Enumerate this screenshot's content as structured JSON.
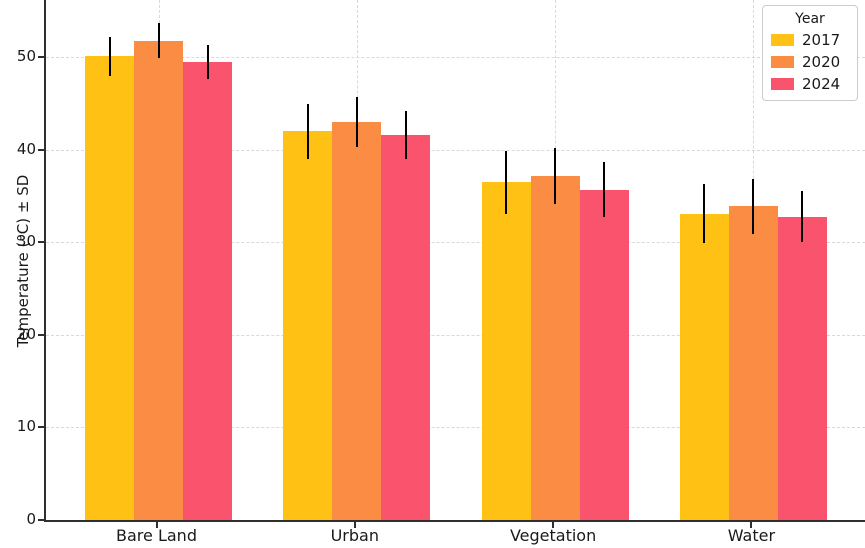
{
  "chart_data": {
    "type": "bar",
    "title": "",
    "categories": [
      "Bare Land",
      "Urban",
      "Vegetation",
      "Water"
    ],
    "series": [
      {
        "name": "2017",
        "color": "#FFC113",
        "values": [
          50.1,
          42.0,
          36.5,
          33.1
        ],
        "errors": [
          2.1,
          3.0,
          3.4,
          3.2
        ]
      },
      {
        "name": "2020",
        "color": "#FB8C44",
        "values": [
          51.8,
          43.0,
          37.2,
          33.9
        ],
        "errors": [
          1.9,
          2.7,
          3.0,
          3.0
        ]
      },
      {
        "name": "2024",
        "color": "#F9536E",
        "values": [
          49.5,
          41.6,
          35.7,
          32.8
        ],
        "errors": [
          1.8,
          2.6,
          3.0,
          2.8
        ]
      }
    ],
    "xlabel": "",
    "ylabel": "Temperature (°C) ± SD",
    "ylim": [
      0,
      56.2
    ],
    "yticks": [
      0,
      10,
      20,
      30,
      40,
      50
    ],
    "grid": true,
    "grid_style": "dashed",
    "legend": {
      "title": "Year",
      "position": "upper right"
    },
    "error_bar_color": "#000000",
    "background_color": "#ffffff"
  }
}
